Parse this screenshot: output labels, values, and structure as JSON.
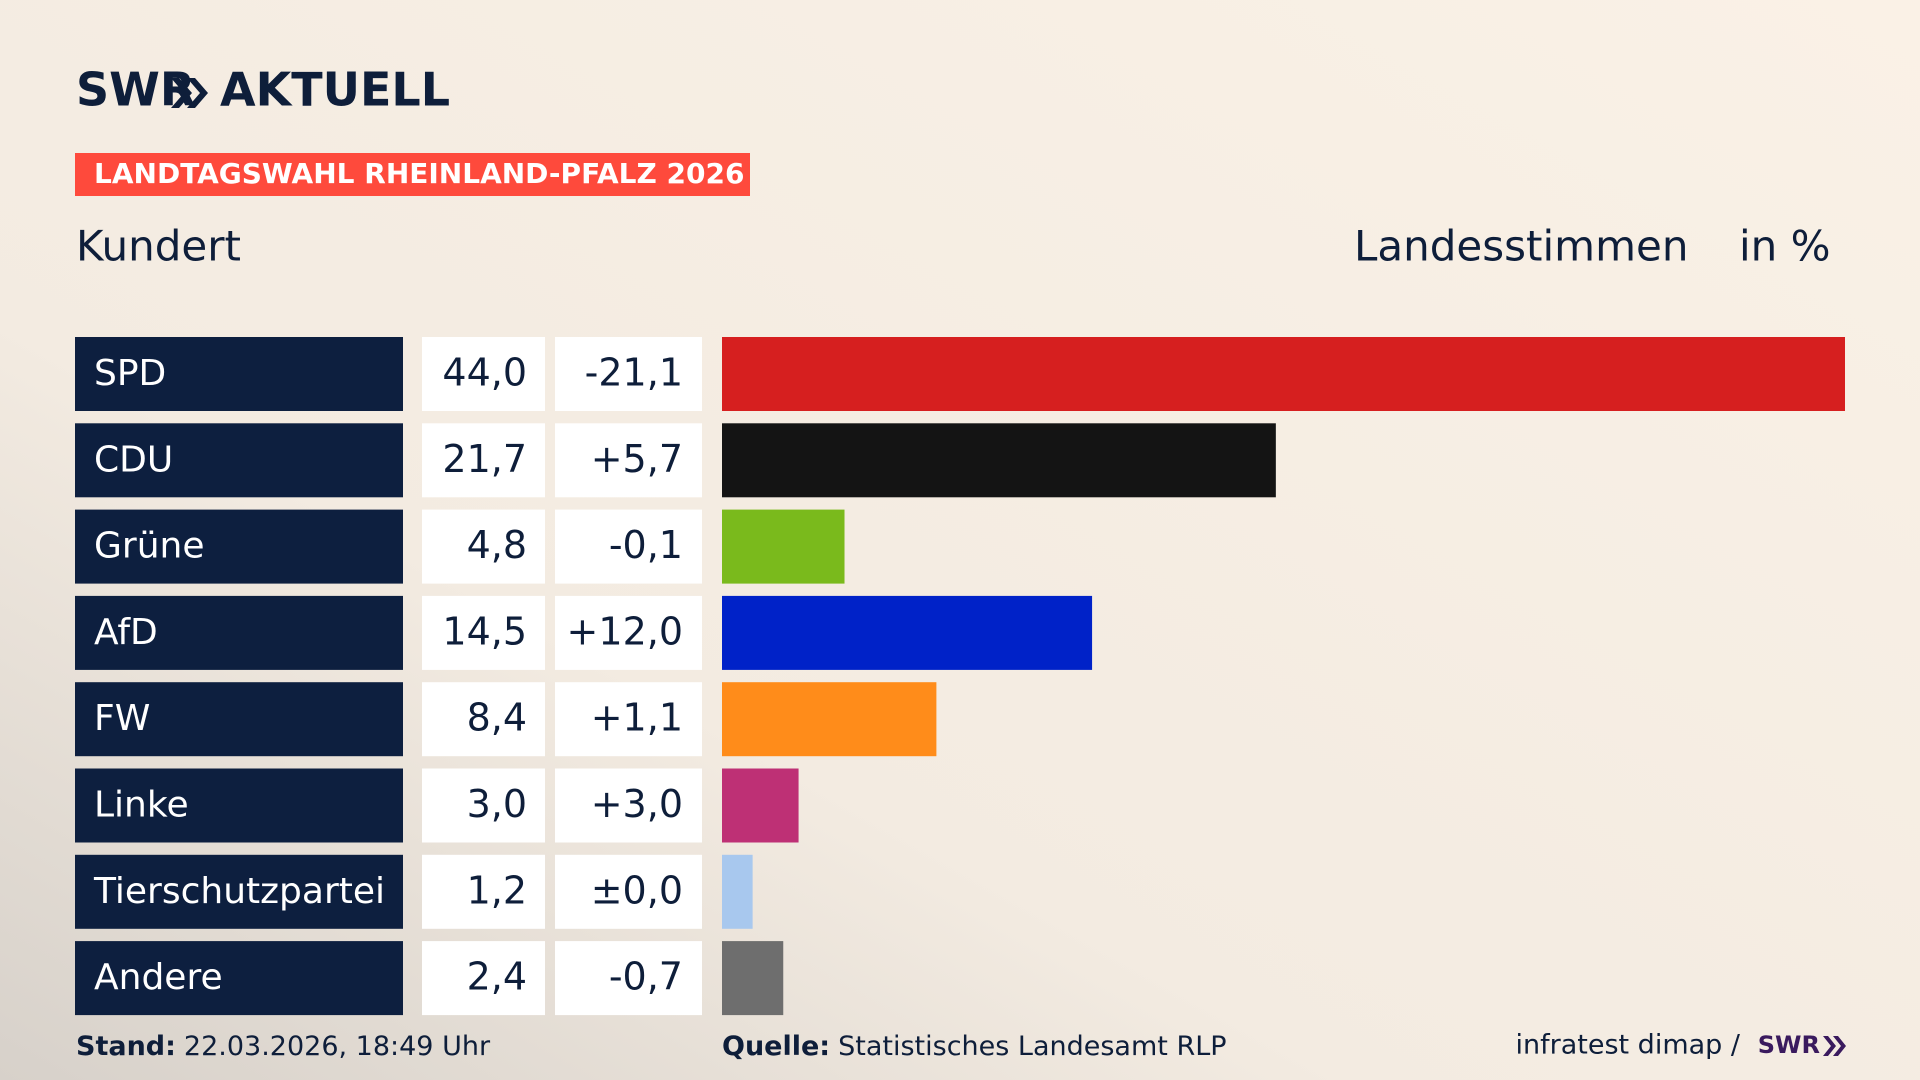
{
  "brand": "SWR",
  "brand_section": "AKTUELL",
  "chart_data": {
    "type": "bar",
    "orientation": "horizontal",
    "badge": "LANDTAGSWAHL RHEINLAND-PFALZ 2026",
    "title": "Kundert",
    "value_header": "Landesstimmen",
    "unit_header": "in %",
    "categories": [
      "SPD",
      "CDU",
      "Grüne",
      "AfD",
      "FW",
      "Linke",
      "Tierschutzpartei",
      "Andere"
    ],
    "values": [
      44.0,
      21.7,
      4.8,
      14.5,
      8.4,
      3.0,
      1.2,
      2.4
    ],
    "value_labels": [
      "44,0",
      "21,7",
      "4,8",
      "14,5",
      "8,4",
      "3,0",
      "1,2",
      "2,4"
    ],
    "changes": [
      -21.1,
      5.7,
      -0.1,
      12.0,
      1.1,
      3.0,
      0.0,
      -0.7
    ],
    "change_labels": [
      "-21,1",
      "+5,7",
      "-0,1",
      "+12,0",
      "+1,1",
      "+3,0",
      "±0,0",
      "-0,7"
    ],
    "colors": [
      "#d61f1f",
      "#141414",
      "#7aba1c",
      "#0022c8",
      "#ff8c1a",
      "#be3075",
      "#a8c8ee",
      "#6e6e6e"
    ]
  },
  "footer": {
    "stand_label": "Stand:",
    "stand": "22.03.2026, 18:49 Uhr",
    "source_label": "Quelle:",
    "source": "Statistisches Landesamt RLP",
    "credit": "infratest dimap /",
    "credit_brand": "SWR"
  }
}
